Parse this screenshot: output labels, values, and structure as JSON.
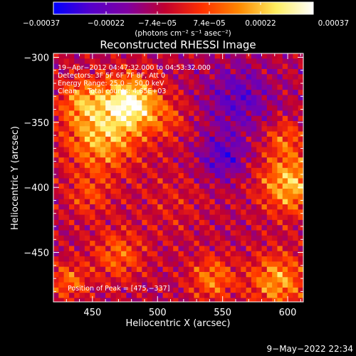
{
  "chart_data": {
    "type": "heatmap",
    "title": "Reconstructed RHESSI Image",
    "xlabel": "Heliocentric X (arcsec)",
    "ylabel": "Heliocentric Y (arcsec)",
    "xlim": [
      420,
      612
    ],
    "ylim": [
      -488,
      -297
    ],
    "x_ticks": [
      450,
      500,
      550,
      600
    ],
    "x_tick_labels": [
      "450",
      "500",
      "550",
      "600"
    ],
    "y_ticks": [
      -300,
      -350,
      -400,
      -450
    ],
    "y_tick_labels": [
      "−300",
      "−350",
      "−400",
      "−450"
    ],
    "colorbar": {
      "ticks": [
        -0.00037,
        -0.00022,
        -7.4e-05,
        7.4e-05,
        0.00022,
        0.00037
      ],
      "tick_labels": [
        "−0.00037",
        "−0.00022",
        "−7.4e−05",
        "7.4e−05",
        "0.00022",
        "0.00037"
      ],
      "unit_label": "(photons cm⁻² s⁻¹ asec⁻²)",
      "colors": [
        "#0000ff",
        "#5500cc",
        "#8000a0",
        "#c00030",
        "#ff3000",
        "#ff8800",
        "#ffee60",
        "#ffffff"
      ]
    },
    "info_lines": [
      "19−Apr−2012 04:47:32.000 to 04:53:32.000",
      "Detectors: 3F 5F 6F 7F 8F, Att 0",
      "Energy Range: 25.0 − 50.0 keV",
      "Clean     Total counts: 4.65E+03"
    ],
    "peak_label": "Position of Peak = [475,−337]",
    "peak": [
      475,
      -337
    ],
    "sources": [
      {
        "x": 477,
        "y": -332,
        "sigma": 14,
        "amp": 0.00037
      },
      {
        "x": 455,
        "y": -358,
        "sigma": 20,
        "amp": 0.00027
      },
      {
        "x": 440,
        "y": -330,
        "sigma": 12,
        "amp": 0.00018
      },
      {
        "x": 505,
        "y": -345,
        "sigma": 12,
        "amp": 0.00012
      },
      {
        "x": 600,
        "y": -395,
        "sigma": 16,
        "amp": 0.00029
      },
      {
        "x": 595,
        "y": -360,
        "sigma": 10,
        "amp": 0.00015
      },
      {
        "x": 590,
        "y": -470,
        "sigma": 15,
        "amp": 0.00025
      },
      {
        "x": 540,
        "y": -468,
        "sigma": 12,
        "amp": 0.0002
      },
      {
        "x": 468,
        "y": -450,
        "sigma": 14,
        "amp": 0.00017
      },
      {
        "x": 445,
        "y": -405,
        "sigma": 12,
        "amp": 0.00012
      },
      {
        "x": 430,
        "y": -470,
        "sigma": 10,
        "amp": 0.00018
      },
      {
        "x": 510,
        "y": -410,
        "sigma": 18,
        "amp": 6e-05
      },
      {
        "x": 560,
        "y": -330,
        "sigma": 18,
        "amp": -0.00016
      },
      {
        "x": 548,
        "y": -375,
        "sigma": 12,
        "amp": -0.00018
      }
    ]
  },
  "footer": {
    "timestamp": "9−May−2022 22:34"
  }
}
